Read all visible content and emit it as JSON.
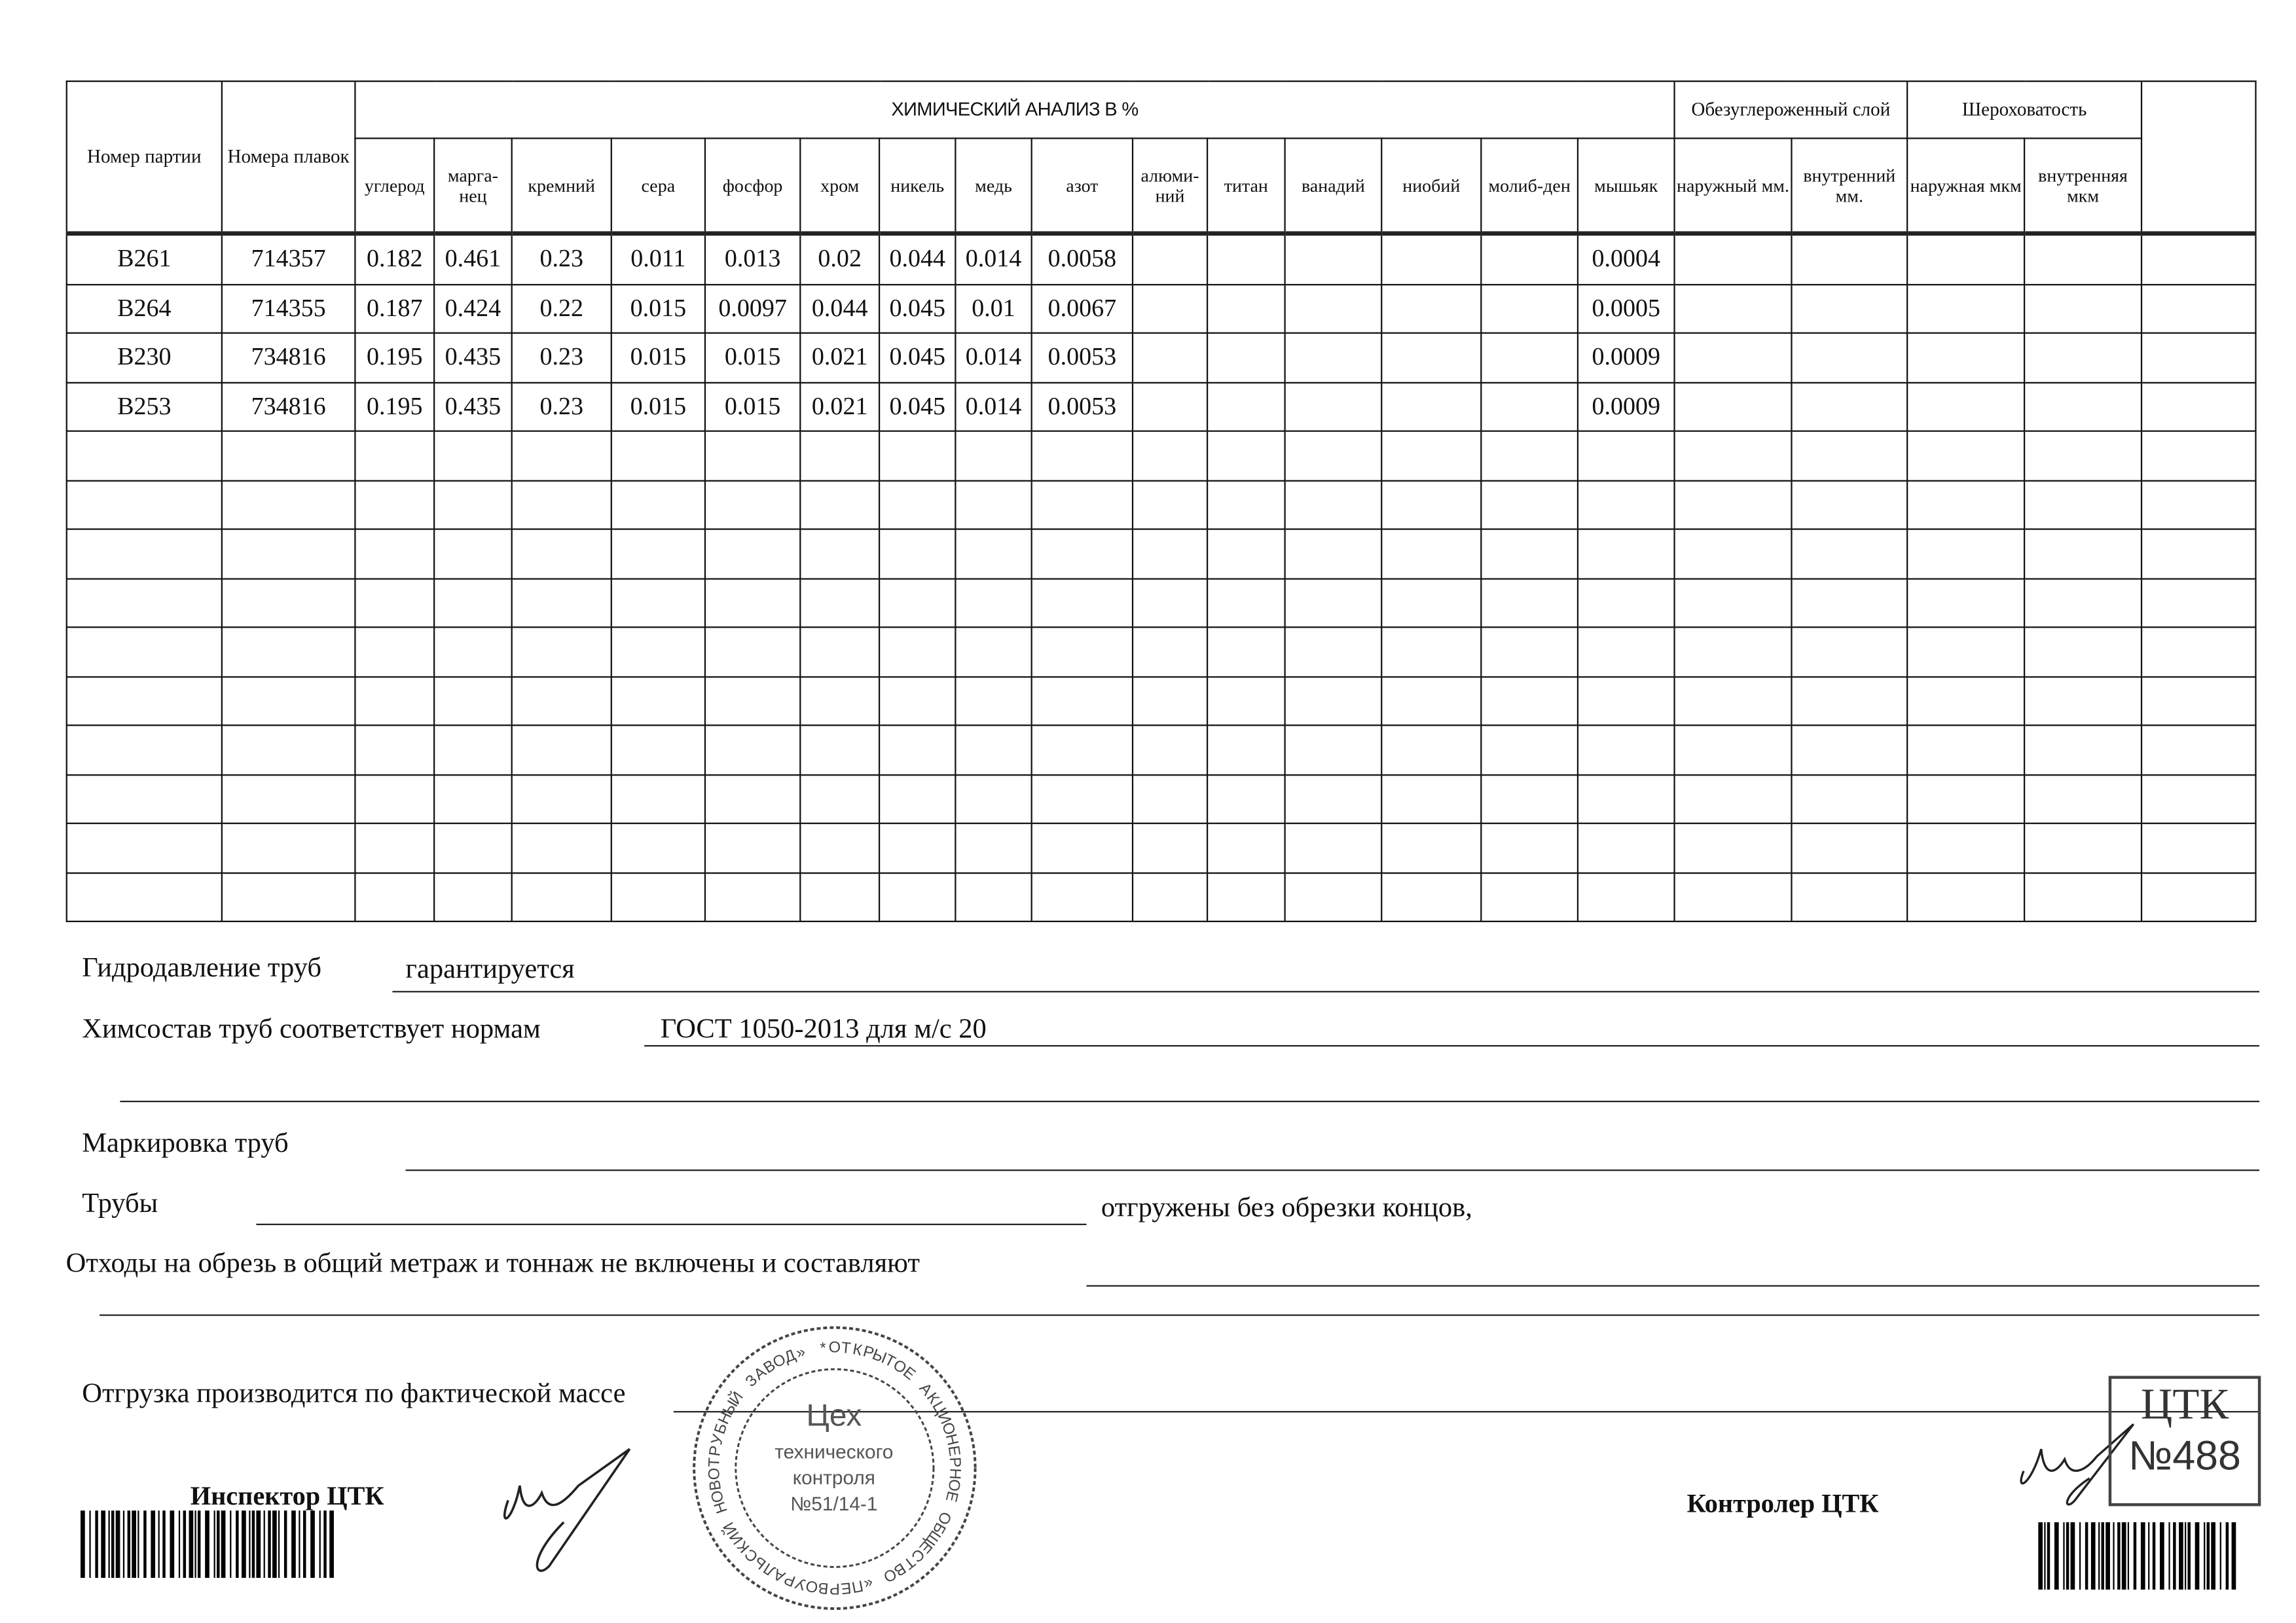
{
  "table": {
    "col_party": "Номер партии",
    "col_heats": "Номера плавок",
    "chem_title": "ХИМИЧЕСКИЙ АНАЛИЗ В %",
    "decarb_title": "Обезуглероженный слой",
    "rough_title": "Шероховатость",
    "elements": [
      "углерод",
      "марга-нец",
      "кремний",
      "сера",
      "фосфор",
      "хром",
      "никель",
      "медь",
      "азот",
      "алюми-ний",
      "титан",
      "ванадий",
      "ниобий",
      "молиб-ден",
      "мышьяк"
    ],
    "decarb_cols": [
      "наружный мм.",
      "внутренний мм."
    ],
    "rough_cols": [
      "наружная мкм",
      "внутренняя мкм"
    ],
    "rows": [
      {
        "party": "B261",
        "heat": "714357",
        "values": [
          "0.182",
          "0.461",
          "0.23",
          "0.011",
          "0.013",
          "0.02",
          "0.044",
          "0.014",
          "0.0058",
          "",
          "",
          "",
          "",
          "",
          "0.0004"
        ]
      },
      {
        "party": "B264",
        "heat": "714355",
        "values": [
          "0.187",
          "0.424",
          "0.22",
          "0.015",
          "0.0097",
          "0.044",
          "0.045",
          "0.01",
          "0.0067",
          "",
          "",
          "",
          "",
          "",
          "0.0005"
        ]
      },
      {
        "party": "B230",
        "heat": "734816",
        "values": [
          "0.195",
          "0.435",
          "0.23",
          "0.015",
          "0.015",
          "0.021",
          "0.045",
          "0.014",
          "0.0053",
          "",
          "",
          "",
          "",
          "",
          "0.0009"
        ]
      },
      {
        "party": "B253",
        "heat": "734816",
        "values": [
          "0.195",
          "0.435",
          "0.23",
          "0.015",
          "0.015",
          "0.021",
          "0.045",
          "0.014",
          "0.0053",
          "",
          "",
          "",
          "",
          "",
          "0.0009"
        ]
      }
    ]
  },
  "footer": {
    "hydro_label": "Гидродавление труб",
    "hydro_value": "гарантируется",
    "chem_label": "Химсостав труб соответствует нормам",
    "chem_value": "ГОСТ 1050-2013 для м/с 20",
    "marking_label": "Маркировка труб",
    "pipes_label": "Трубы",
    "pipes_suffix": "отгружены без обрезки концов,",
    "waste_label": "Отходы на обрезь в общий метраж и тоннаж не включены и составляют",
    "shipment_label": "Отгрузка производится по фактической массе",
    "inspector_label": "Инспектор ЦТК",
    "controller_label": "Контролер ЦТК"
  },
  "stamp": {
    "ring_text": "ОТКРЫТОЕ АКЦИОНЕРНОЕ ОБЩЕСТВО «ПЕРВОУРАЛЬСКИЙ НОВОТРУБНЫЙ ЗАВОД» *",
    "center_line1": "Цех",
    "center_line2": "технического",
    "center_line3": "контроля",
    "center_line4": "№51/14-1"
  },
  "ctk_stamp": {
    "line1": "ЦТК",
    "line2": "№488"
  }
}
